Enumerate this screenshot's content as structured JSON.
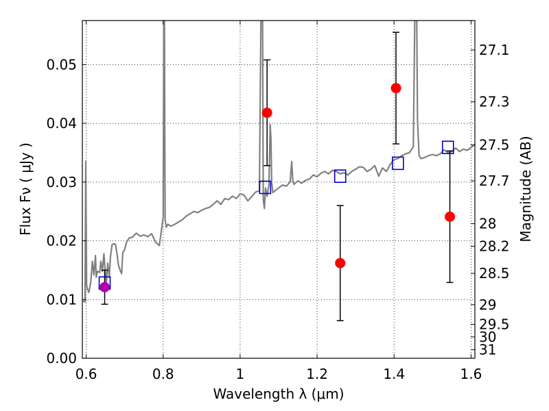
{
  "chart_data": {
    "type": "scatter",
    "xlabel": "Wavelength  λ (μm)",
    "ylabel": "Flux  Fν  ( μJy )",
    "y2label": "Magnitude (AB)",
    "xlim": [
      0.59,
      1.61
    ],
    "ylim": [
      0.0,
      0.0575
    ],
    "grid": true,
    "grid_style": "dotted",
    "x_ticks": [
      {
        "value": 0.6,
        "label": "0.6"
      },
      {
        "value": 0.8,
        "label": "0.8"
      },
      {
        "value": 1.0,
        "label": "1"
      },
      {
        "value": 1.2,
        "label": "1.2"
      },
      {
        "value": 1.4,
        "label": "1.4"
      },
      {
        "value": 1.6,
        "label": "1.6"
      }
    ],
    "y_ticks": [
      {
        "value": 0.0,
        "label": "0.00"
      },
      {
        "value": 0.01,
        "label": "0.01"
      },
      {
        "value": 0.02,
        "label": "0.02"
      },
      {
        "value": 0.03,
        "label": "0.03"
      },
      {
        "value": 0.04,
        "label": "0.04"
      },
      {
        "value": 0.05,
        "label": "0.05"
      }
    ],
    "y2_ticks": [
      {
        "value": 27.1,
        "label": "27.1"
      },
      {
        "value": 27.3,
        "label": "27.3"
      },
      {
        "value": 27.5,
        "label": "27.5"
      },
      {
        "value": 27.7,
        "label": "27.7"
      },
      {
        "value": 28.0,
        "label": "28"
      },
      {
        "value": 28.2,
        "label": "28.2"
      },
      {
        "value": 28.5,
        "label": "28.5"
      },
      {
        "value": 29.0,
        "label": "29"
      },
      {
        "value": 29.5,
        "label": "29.5"
      },
      {
        "value": 30.0,
        "label": "30"
      },
      {
        "value": 31.0,
        "label": "31"
      }
    ],
    "model_spectrum": {
      "color": "#808080",
      "x": [
        0.59,
        0.597,
        0.599,
        0.601,
        0.603,
        0.607,
        0.612,
        0.616,
        0.62,
        0.624,
        0.626,
        0.628,
        0.63,
        0.635,
        0.638,
        0.642,
        0.646,
        0.652,
        0.656,
        0.66,
        0.663,
        0.667,
        0.672,
        0.676,
        0.68,
        0.684,
        0.688,
        0.692,
        0.695,
        0.7,
        0.705,
        0.712,
        0.72,
        0.73,
        0.74,
        0.75,
        0.76,
        0.77,
        0.78,
        0.79,
        0.8,
        0.802,
        0.803,
        0.805,
        0.808,
        0.812,
        0.82,
        0.83,
        0.84,
        0.85,
        0.86,
        0.87,
        0.88,
        0.89,
        0.9,
        0.91,
        0.92,
        0.93,
        0.94,
        0.95,
        0.96,
        0.97,
        0.98,
        0.99,
        1.0,
        1.01,
        1.02,
        1.03,
        1.04,
        1.05,
        1.055,
        1.058,
        1.06,
        1.063,
        1.066,
        1.07,
        1.075,
        1.078,
        1.08,
        1.082,
        1.085,
        1.09,
        1.1,
        1.11,
        1.12,
        1.13,
        1.134,
        1.137,
        1.14,
        1.15,
        1.16,
        1.17,
        1.18,
        1.19,
        1.2,
        1.21,
        1.22,
        1.23,
        1.24,
        1.25,
        1.26,
        1.27,
        1.28,
        1.29,
        1.3,
        1.31,
        1.32,
        1.33,
        1.34,
        1.35,
        1.36,
        1.37,
        1.38,
        1.39,
        1.4,
        1.41,
        1.42,
        1.43,
        1.44,
        1.45,
        1.455,
        1.458,
        1.461,
        1.465,
        1.47,
        1.48,
        1.49,
        1.5,
        1.51,
        1.52,
        1.53,
        1.54,
        1.55,
        1.56,
        1.57,
        1.58,
        1.59,
        1.6,
        1.61
      ],
      "y": [
        0.0098,
        0.0096,
        0.0335,
        0.0125,
        0.0118,
        0.0112,
        0.013,
        0.0165,
        0.0142,
        0.0175,
        0.0138,
        0.0145,
        0.0148,
        0.0146,
        0.0165,
        0.0148,
        0.0178,
        0.0125,
        0.0162,
        0.0138,
        0.0172,
        0.0193,
        0.0195,
        0.0194,
        0.0178,
        0.0158,
        0.015,
        0.0144,
        0.018,
        0.0185,
        0.0198,
        0.0205,
        0.0206,
        0.0213,
        0.0208,
        0.021,
        0.0207,
        0.0212,
        0.0198,
        0.0192,
        0.024,
        0.065,
        0.065,
        0.0235,
        0.0223,
        0.0228,
        0.0225,
        0.0228,
        0.0232,
        0.0236,
        0.0242,
        0.0246,
        0.025,
        0.0248,
        0.0252,
        0.0255,
        0.0257,
        0.0262,
        0.0268,
        0.0262,
        0.0272,
        0.027,
        0.0276,
        0.0272,
        0.028,
        0.0278,
        0.0268,
        0.0275,
        0.0283,
        0.0285,
        0.065,
        0.065,
        0.027,
        0.0255,
        0.029,
        0.0276,
        0.0296,
        0.0398,
        0.0375,
        0.03,
        0.0282,
        0.0285,
        0.029,
        0.0295,
        0.0293,
        0.03,
        0.0335,
        0.0301,
        0.0296,
        0.0302,
        0.0298,
        0.0303,
        0.0305,
        0.0312,
        0.0309,
        0.0315,
        0.0318,
        0.0314,
        0.032,
        0.0318,
        0.0314,
        0.0316,
        0.0312,
        0.0318,
        0.0322,
        0.0326,
        0.0325,
        0.0318,
        0.0322,
        0.0328,
        0.031,
        0.0324,
        0.0318,
        0.033,
        0.0338,
        0.034,
        0.0345,
        0.0348,
        0.035,
        0.036,
        0.065,
        0.065,
        0.0405,
        0.0345,
        0.034,
        0.0342,
        0.0345,
        0.0347,
        0.0345,
        0.0348,
        0.0355,
        0.035,
        0.0352,
        0.0358,
        0.0352,
        0.0356,
        0.0354,
        0.0359,
        0.0364
      ]
    },
    "model_photometry": {
      "marker": "open-square",
      "color": "#0000cc",
      "points": [
        {
          "x": 0.648,
          "y": 0.0128
        },
        {
          "x": 1.065,
          "y": 0.0291
        },
        {
          "x": 1.26,
          "y": 0.031
        },
        {
          "x": 1.41,
          "y": 0.0332
        },
        {
          "x": 1.54,
          "y": 0.0359
        }
      ]
    },
    "observed_detections": {
      "marker": "filled-circle",
      "color": "#ff0000",
      "points": [
        {
          "x": 1.07,
          "y": 0.0418,
          "yerr_low": 0.009,
          "yerr_high": 0.009
        },
        {
          "x": 1.26,
          "y": 0.0162,
          "yerr_low": 0.0098,
          "yerr_high": 0.0098
        },
        {
          "x": 1.405,
          "y": 0.046,
          "yerr_low": 0.0095,
          "yerr_high": 0.0095
        },
        {
          "x": 1.545,
          "y": 0.0241,
          "yerr_low": 0.0112,
          "yerr_high": 0.0112
        }
      ]
    },
    "observed_other": {
      "marker": "filled-circle",
      "color": "#b000b0",
      "points": [
        {
          "x": 0.648,
          "y": 0.0121,
          "yerr_low": 0.0029,
          "yerr_high": 0.0029
        }
      ]
    }
  }
}
